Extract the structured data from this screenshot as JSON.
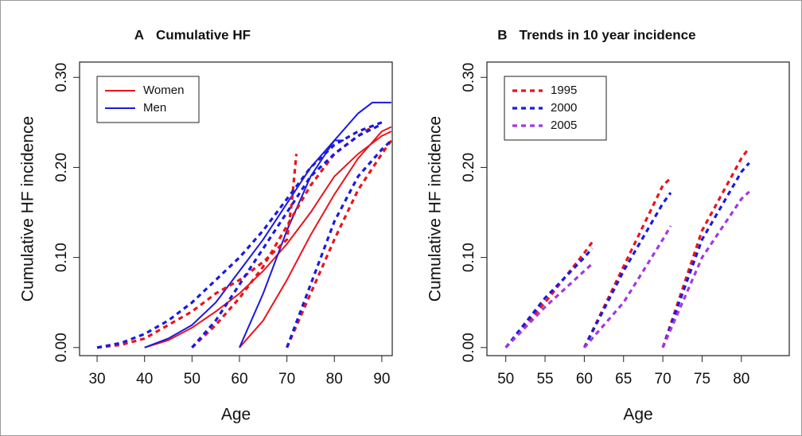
{
  "chart_data": [
    {
      "type": "line",
      "panel": "A",
      "title": "Cumulative HF",
      "xlabel": "Age",
      "ylabel": "Cumulative HF incidence",
      "xlim": [
        26.3,
        92.2
      ],
      "ylim": [
        -0.009,
        0.317
      ],
      "xticks": [
        30,
        40,
        50,
        60,
        70,
        80,
        90
      ],
      "yticks": [
        {
          "value": 0,
          "label": "0.00"
        },
        {
          "value": 0.1,
          "label": "0.10"
        },
        {
          "value": 0.2,
          "label": "0.20"
        },
        {
          "value": 0.3,
          "label": "0.30"
        }
      ],
      "legend": "top-left",
      "series": [
        {
          "name": "Women",
          "color": "#e8141c",
          "dash": false,
          "x": [
            40,
            45,
            50,
            55,
            60,
            65,
            70,
            75,
            80,
            85,
            90,
            92
          ],
          "values": [
            0,
            0.008,
            0.022,
            0.04,
            0.06,
            0.085,
            0.115,
            0.15,
            0.19,
            0.215,
            0.235,
            0.24
          ]
        },
        {
          "name": "Men",
          "color": "#1a1ae0",
          "dash": false,
          "x": [
            40,
            45,
            50,
            55,
            60,
            65,
            70,
            75,
            80,
            82
          ],
          "values": [
            0,
            0.01,
            0.025,
            0.05,
            0.085,
            0.12,
            0.16,
            0.2,
            0.23,
            0.23
          ]
        },
        {
          "color": "#e8141c",
          "dash": false,
          "x": [
            60,
            65,
            70,
            75,
            80,
            85,
            90,
            92
          ],
          "values": [
            0,
            0.03,
            0.075,
            0.125,
            0.17,
            0.21,
            0.24,
            0.245
          ]
        },
        {
          "color": "#1a1ae0",
          "dash": false,
          "x": [
            60,
            65,
            70,
            75,
            80,
            85,
            88,
            92
          ],
          "values": [
            0,
            0.06,
            0.13,
            0.19,
            0.23,
            0.26,
            0.272,
            0.272
          ]
        },
        {
          "color": "#e8141c",
          "dash": true,
          "x": [
            30,
            35,
            40,
            45,
            50,
            55,
            60,
            65,
            70,
            71,
            72
          ],
          "values": [
            0,
            0.003,
            0.01,
            0.025,
            0.04,
            0.06,
            0.075,
            0.095,
            0.12,
            0.16,
            0.215
          ]
        },
        {
          "color": "#e8141c",
          "dash": true,
          "x": [
            50,
            55,
            60,
            65,
            70,
            75,
            80,
            85,
            88
          ],
          "values": [
            0,
            0.025,
            0.055,
            0.09,
            0.135,
            0.18,
            0.215,
            0.235,
            0.245
          ]
        },
        {
          "color": "#e8141c",
          "dash": true,
          "x": [
            70,
            75,
            80,
            85,
            90,
            92
          ],
          "values": [
            0,
            0.06,
            0.12,
            0.175,
            0.215,
            0.23
          ]
        },
        {
          "color": "#1a1ae0",
          "dash": true,
          "x": [
            30,
            35,
            40,
            45,
            50,
            55,
            60,
            65,
            70,
            75,
            80,
            85,
            90
          ],
          "values": [
            0,
            0.005,
            0.015,
            0.03,
            0.05,
            0.075,
            0.1,
            0.13,
            0.165,
            0.2,
            0.225,
            0.24,
            0.25
          ]
        },
        {
          "color": "#1a1ae0",
          "dash": true,
          "x": [
            50,
            55,
            60,
            65,
            70,
            75,
            80,
            85,
            90
          ],
          "values": [
            0,
            0.03,
            0.07,
            0.11,
            0.15,
            0.19,
            0.215,
            0.235,
            0.248
          ]
        },
        {
          "color": "#1a1ae0",
          "dash": true,
          "x": [
            70,
            75,
            80,
            85,
            90,
            92
          ],
          "values": [
            0,
            0.07,
            0.14,
            0.19,
            0.22,
            0.23
          ]
        }
      ]
    },
    {
      "type": "line",
      "panel": "B",
      "title": "Trends in 10 year incidence",
      "xlabel": "Age",
      "ylabel": "Cumulative HF incidence",
      "xlim": [
        47.6,
        86.1
      ],
      "ylim": [
        -0.009,
        0.317
      ],
      "xticks": [
        50,
        55,
        60,
        65,
        70,
        75,
        80
      ],
      "yticks": [
        {
          "value": 0,
          "label": "0.00"
        },
        {
          "value": 0.1,
          "label": "0.10"
        },
        {
          "value": 0.2,
          "label": "0.20"
        },
        {
          "value": 0.3,
          "label": "0.30"
        }
      ],
      "legend": "top-left",
      "x": [
        50,
        55,
        60,
        61,
        null,
        60,
        65,
        70,
        71,
        null,
        70,
        75,
        80,
        81
      ],
      "series": [
        {
          "name": "1995",
          "color": "#e8141c",
          "dash": true,
          "values": [
            0,
            0.05,
            0.105,
            0.117,
            null,
            0,
            0.09,
            0.18,
            0.188,
            null,
            0,
            0.13,
            0.21,
            0.222
          ]
        },
        {
          "name": "2000",
          "color": "#1a1ae0",
          "dash": true,
          "values": [
            0,
            0.055,
            0.1,
            0.11,
            null,
            0,
            0.085,
            0.16,
            0.172,
            null,
            0,
            0.12,
            0.195,
            0.205
          ]
        },
        {
          "name": "2005",
          "color": "#a238e0",
          "dash": true,
          "values": [
            0,
            0.045,
            0.085,
            0.093,
            null,
            0,
            0.05,
            0.12,
            0.135,
            null,
            0,
            0.1,
            0.165,
            0.173
          ]
        }
      ]
    }
  ]
}
